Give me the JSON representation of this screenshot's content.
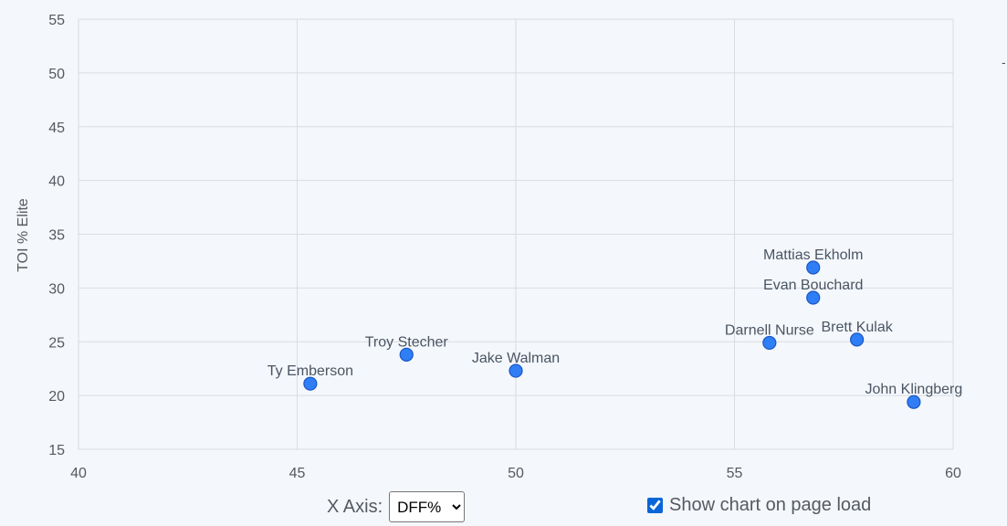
{
  "chart_data": {
    "type": "scatter",
    "title": "",
    "xlabel": "",
    "ylabel": "TOI % Elite",
    "xlim": [
      40,
      60
    ],
    "ylim": [
      15,
      55
    ],
    "x_ticks": [
      40,
      45,
      50,
      55,
      60
    ],
    "y_ticks": [
      15,
      20,
      25,
      30,
      35,
      40,
      45,
      50,
      55
    ],
    "grid": true,
    "points": [
      {
        "label": "Ty Emberson",
        "x": 45.3,
        "y": 21.1
      },
      {
        "label": "Troy Stecher",
        "x": 47.5,
        "y": 23.8
      },
      {
        "label": "Jake Walman",
        "x": 50.0,
        "y": 22.3
      },
      {
        "label": "Darnell Nurse",
        "x": 55.8,
        "y": 24.9
      },
      {
        "label": "Mattias Ekholm",
        "x": 56.8,
        "y": 31.9
      },
      {
        "label": "Evan Bouchard",
        "x": 56.8,
        "y": 29.1
      },
      {
        "label": "Brett Kulak",
        "x": 57.8,
        "y": 25.2
      },
      {
        "label": "John Klingberg",
        "x": 59.1,
        "y": 19.4
      }
    ],
    "point_color": "#2f7ef5"
  },
  "controls": {
    "x_axis_label": "X Axis:",
    "x_axis_selected": "DFF%",
    "show_chart_label": "Show chart on page load",
    "show_chart_checked": true
  },
  "edge_glyph": "-"
}
